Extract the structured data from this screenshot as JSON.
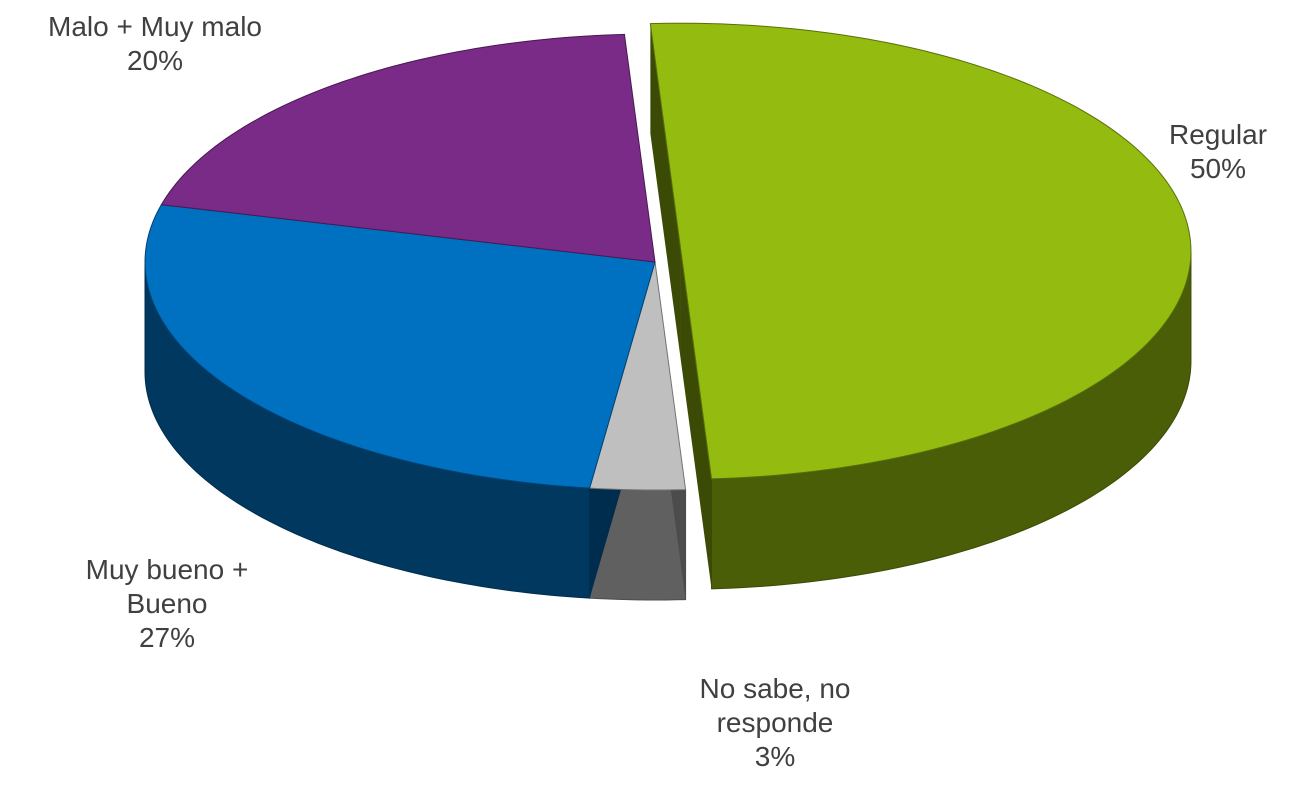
{
  "chart_data": {
    "type": "pie",
    "categories": [
      "Regular",
      "No sabe, no responde",
      "Muy bueno + Bueno",
      "Malo + Muy malo"
    ],
    "values": [
      50,
      3,
      27,
      20
    ],
    "value_labels": [
      "50%",
      "3%",
      "27%",
      "20%"
    ],
    "colors": [
      "#94bb0f",
      "#bfbfbf",
      "#0070c0",
      "#7a2a87"
    ]
  }
}
